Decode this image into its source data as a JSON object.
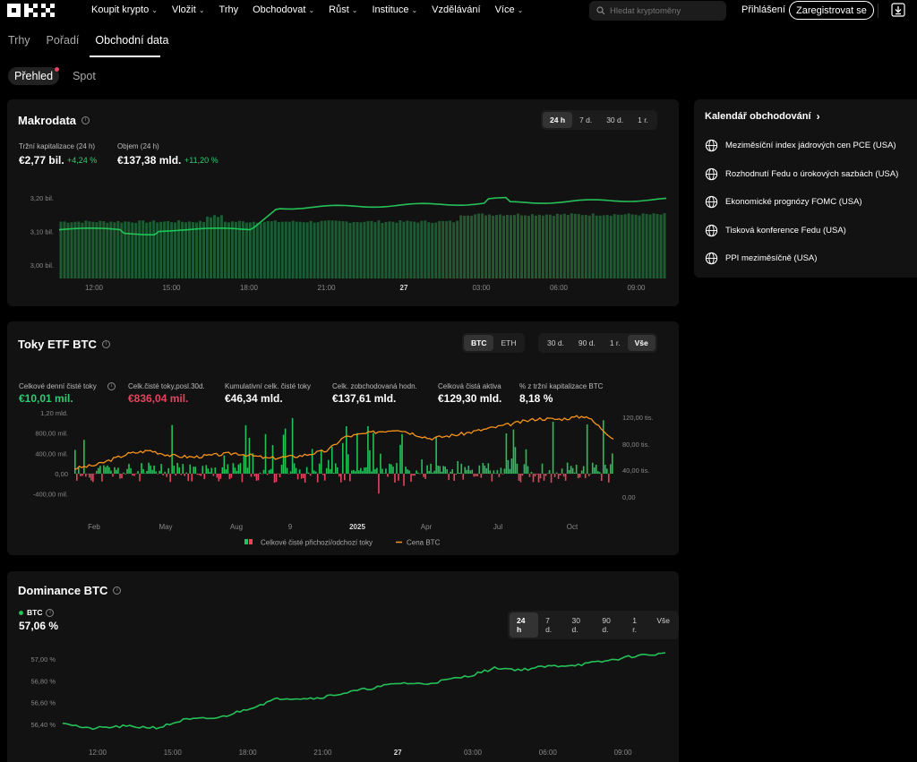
{
  "nav": {
    "logo": "OKX",
    "items": [
      {
        "label": "Koupit krypto",
        "dropdown": true
      },
      {
        "label": "Vložit",
        "dropdown": true
      },
      {
        "label": "Trhy",
        "dropdown": false
      },
      {
        "label": "Obchodovat",
        "dropdown": true
      },
      {
        "label": "Růst",
        "dropdown": true
      },
      {
        "label": "Instituce",
        "dropdown": true
      },
      {
        "label": "Vzdělávání",
        "dropdown": false
      },
      {
        "label": "Více",
        "dropdown": true
      }
    ],
    "search_placeholder": "Hledat kryptoměny",
    "login": "Přihlášení",
    "register": "Zaregistrovat se"
  },
  "subtabs": {
    "items": [
      "Trhy",
      "Pořadí",
      "Obchodní data"
    ],
    "active": "Obchodní data"
  },
  "pills": {
    "items": [
      "Přehled",
      "Spot"
    ],
    "active": "Přehled"
  },
  "makrodata": {
    "title": "Makrodata",
    "ranges": [
      "24 h",
      "7 d.",
      "30 d.",
      "1 r."
    ],
    "active_range": "24 h",
    "market_cap_label": "Tržní kapitalizace (24 h)",
    "market_cap_value": "€2,77 bil.",
    "market_cap_change": "+4,24 %",
    "volume_label": "Objem (24 h)",
    "volume_value": "€137,38 mld.",
    "volume_change": "+11,20 %",
    "y_ticks": [
      "3,20 bil.",
      "3,10 bil.",
      "3,00 bil."
    ],
    "x_ticks": [
      "12:00",
      "15:00",
      "18:00",
      "21:00",
      "27",
      "03:00",
      "06:00",
      "09:00"
    ],
    "line_color": "#25c158"
  },
  "calendar": {
    "title": "Kalendář obchodování",
    "items": [
      "Meziměsíční index jádrových cen PCE (USA)",
      "Rozhodnutí Fedu o úrokových sazbách (USA)",
      "Ekonomické prognózy FOMC (USA)",
      "Tisková konference Fedu (USA)",
      "PPI meziměsíčně (USA)"
    ]
  },
  "etf": {
    "title": "Toky ETF BTC",
    "assets": [
      "BTC",
      "ETH"
    ],
    "active_asset": "BTC",
    "ranges": [
      "30 d.",
      "90 d.",
      "1 r.",
      "Vše"
    ],
    "active_range": "Vše",
    "stats": [
      {
        "label": "Celkové denní čisté toky",
        "value": "€10,01 mil.",
        "color": "#2ecc71"
      },
      {
        "label": "Celk.čisté toky,posl.30d.",
        "value": "€836,04 mil.",
        "color": "#e3455e"
      },
      {
        "label": "Kumulativní celk. čisté toky",
        "value": "€46,34 mld.",
        "color": "#ffffff"
      },
      {
        "label": "Celk. zobchodovaná hodn.",
        "value": "€137,61 mld.",
        "color": "#ffffff"
      },
      {
        "label": "Celková čistá aktiva",
        "value": "€129,30 mld.",
        "color": "#ffffff"
      },
      {
        "label": "% z tržní kapitalizace BTC",
        "value": "8,18 %",
        "color": "#ffffff"
      }
    ],
    "y_left_ticks": [
      "1,20 mld.",
      "800,00 mil.",
      "400,00 mil.",
      "0,00",
      "-400,00 mil."
    ],
    "y_right_ticks": [
      "120,00 tis.",
      "80,00 tis.",
      "40,00 tis.",
      "0,00"
    ],
    "x_ticks": [
      "Feb",
      "May",
      "Aug",
      "9",
      "2025",
      "Apr",
      "Jul",
      "Oct"
    ],
    "legend_flows": "Celkové čisté přichozí/odchozí toky",
    "legend_price": "Cena BTC",
    "price_color": "#f7931a",
    "inflow_color": "#25c158",
    "outflow_color": "#e3455e"
  },
  "dominance": {
    "title": "Dominance BTC",
    "series_label": "BTC",
    "value": "57,06 %",
    "ranges": [
      "24 h",
      "7 d.",
      "30 d.",
      "90 d.",
      "1 r.",
      "Vše"
    ],
    "active_range": "24 h",
    "y_ticks": [
      "57,00 %",
      "56,80 %",
      "56,60 %",
      "56,40 %"
    ],
    "x_ticks": [
      "12:00",
      "15:00",
      "18:00",
      "21:00",
      "27",
      "03:00",
      "06:00",
      "09:00"
    ],
    "line_color": "#25c158"
  },
  "chart_data": [
    {
      "type": "line",
      "title": "Makrodata",
      "x": [
        "12:00",
        "15:00",
        "18:00",
        "21:00",
        "27",
        "03:00",
        "06:00",
        "09:00"
      ],
      "series": [
        {
          "values": [
            3.11,
            3.1,
            3.11,
            3.16,
            3.17,
            3.18,
            3.18,
            3.19
          ]
        }
      ],
      "ylim": [
        2.96,
        3.24
      ]
    },
    {
      "type": "bar",
      "title": "Toky ETF BTC",
      "x": [
        "Feb",
        "May",
        "Aug",
        "9",
        "2025",
        "Apr",
        "Jul",
        "Oct"
      ],
      "series": [
        {
          "name": "Celkové čisté přichozí/odchozí toky",
          "values": [
            420,
            180,
            230,
            260,
            600,
            380,
            450,
            150
          ]
        },
        {
          "name": "Cena BTC",
          "values": [
            45000,
            65000,
            60000,
            63000,
            95000,
            85000,
            110000,
            105000
          ]
        }
      ]
    },
    {
      "type": "line",
      "title": "Dominance BTC",
      "x": [
        "12:00",
        "15:00",
        "18:00",
        "21:00",
        "27",
        "03:00",
        "06:00",
        "09:00"
      ],
      "series": [
        {
          "name": "BTC",
          "values": [
            56.36,
            56.4,
            56.42,
            56.64,
            56.68,
            56.78,
            56.91,
            57.02
          ]
        }
      ],
      "ylim": [
        56.3,
        57.1
      ]
    }
  ]
}
